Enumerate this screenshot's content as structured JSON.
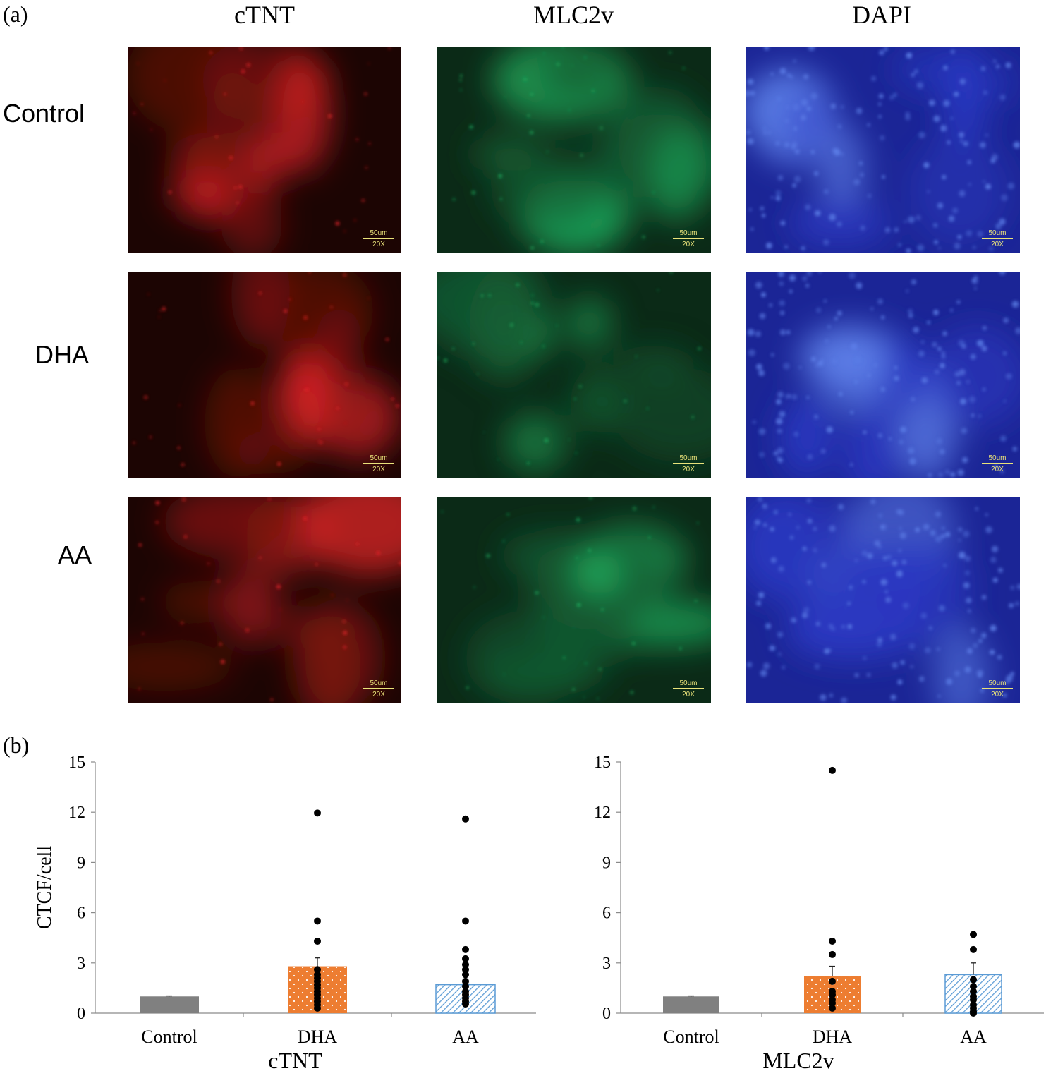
{
  "panel_a_label": "(a)",
  "panel_b_label": "(b)",
  "columns": [
    "cTNT",
    "MLC2v",
    "DAPI"
  ],
  "rows": [
    "Control",
    "DHA",
    "AA"
  ],
  "scale_bar": {
    "length": "50um",
    "magnification": "20X"
  },
  "colors": {
    "red": "#e8262a",
    "green": "#1fae5e",
    "blue": "#3345d8",
    "control_bar": "#808080",
    "dha_bar": "#ed7d31",
    "aa_bar": "#5b9bd5"
  },
  "chart_data": [
    {
      "type": "bar",
      "xlabel": "cTNT",
      "ylabel": "CTCF/cell",
      "ylim": [
        0,
        15
      ],
      "yticks": [
        0,
        3,
        6,
        9,
        12,
        15
      ],
      "categories": [
        "Control",
        "DHA",
        "AA"
      ],
      "values": [
        1.0,
        2.8,
        1.7
      ],
      "error": [
        0.03,
        0.5,
        0.2
      ],
      "points": [
        [],
        [
          11.95,
          5.5,
          4.3,
          2.6,
          2.3,
          2.1,
          1.9,
          1.7,
          1.5,
          1.3,
          1.1,
          0.9,
          0.7,
          0.5,
          0.3
        ],
        [
          11.6,
          5.5,
          3.8,
          3.25,
          2.9,
          2.6,
          2.3,
          1.9,
          1.6,
          1.3,
          1.1,
          0.9,
          0.7,
          0.55
        ]
      ]
    },
    {
      "type": "bar",
      "xlabel": "MLC2v",
      "ylabel": "",
      "ylim": [
        0,
        15
      ],
      "yticks": [
        0,
        3,
        6,
        9,
        12,
        15
      ],
      "categories": [
        "Control",
        "DHA",
        "AA"
      ],
      "values": [
        1.0,
        2.2,
        2.3
      ],
      "error": [
        0.03,
        0.6,
        0.7
      ],
      "points": [
        [],
        [
          14.5,
          4.3,
          3.5,
          1.9,
          1.3,
          1.1,
          0.8,
          0.6,
          0.3
        ],
        [
          4.7,
          3.8,
          2.0,
          1.6,
          1.3,
          1.0,
          0.8,
          0.5,
          0.3,
          0.1,
          0.0
        ]
      ]
    }
  ]
}
